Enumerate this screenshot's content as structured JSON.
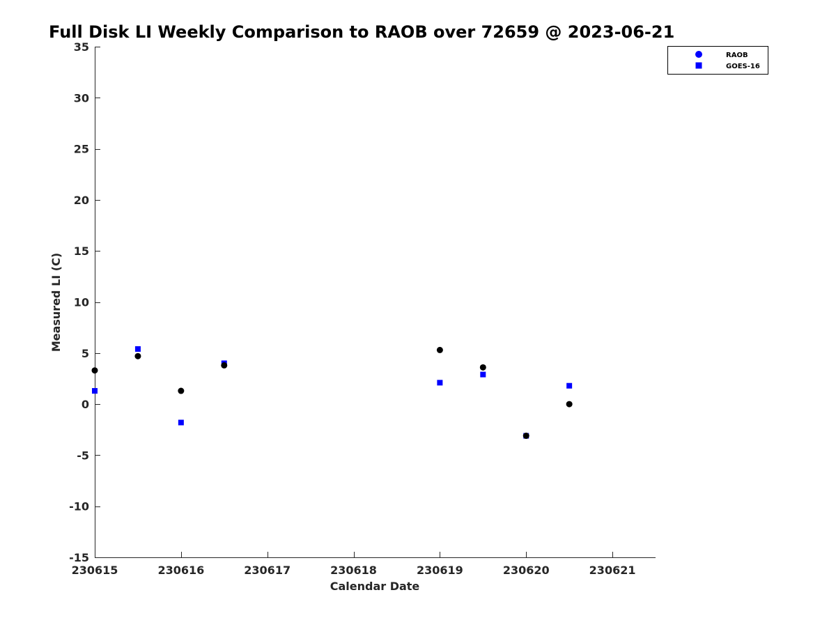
{
  "chart_data": {
    "type": "scatter",
    "title": "Full Disk LI Weekly Comparison to RAOB over 72659 @ 2023-06-21",
    "xlabel": "Calendar Date",
    "ylabel": "Measured LI (C)",
    "xlim": [
      0,
      6.5
    ],
    "ylim": [
      -15,
      35
    ],
    "x_ticks": [
      0,
      1,
      2,
      3,
      4,
      5,
      6
    ],
    "x_tick_labels": [
      "230615",
      "230616",
      "230617",
      "230618",
      "230619",
      "230620",
      "230621"
    ],
    "y_ticks": [
      -15,
      -10,
      -5,
      0,
      5,
      10,
      15,
      20,
      25,
      30,
      35
    ],
    "y_tick_labels": [
      "-15",
      "-10",
      "-5",
      "0",
      "5",
      "10",
      "15",
      "20",
      "25",
      "30",
      "35"
    ],
    "grid": false,
    "legend_position": "top-right, outside plot area",
    "series": [
      {
        "name": "RAOB",
        "marker": "circle",
        "color": "#000000",
        "legend_color": "#0000ff",
        "x": [
          0,
          0.5,
          1,
          1.5,
          4,
          4.5,
          5,
          5.5
        ],
        "y": [
          3.3,
          4.7,
          1.3,
          3.8,
          5.3,
          3.6,
          -3.1,
          0
        ]
      },
      {
        "name": "GOES-16",
        "marker": "square",
        "color": "#0000ff",
        "legend_color": "#0000ff",
        "x": [
          0,
          0.5,
          1,
          1.5,
          4,
          4.5,
          5,
          5.5
        ],
        "y": [
          1.3,
          5.4,
          -1.8,
          4.0,
          2.1,
          2.9,
          -3.1,
          1.8
        ]
      }
    ]
  }
}
